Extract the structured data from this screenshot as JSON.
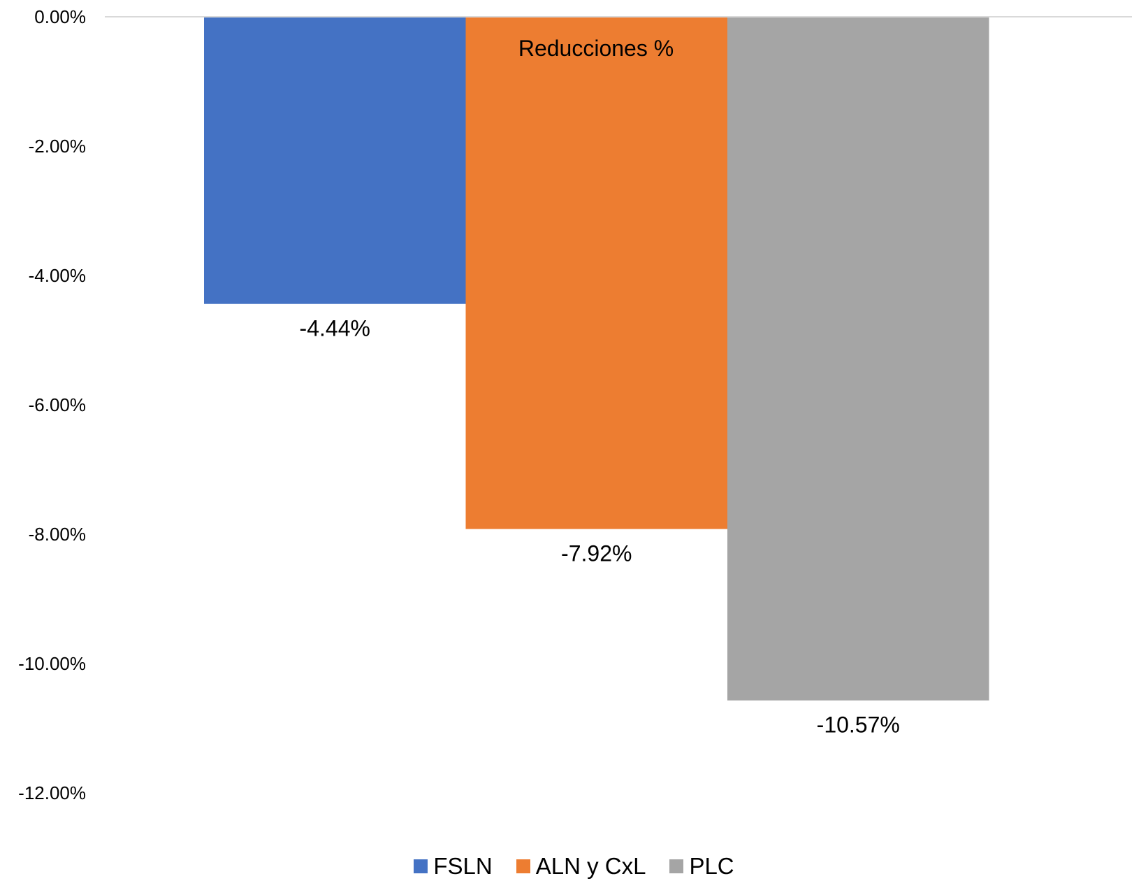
{
  "chart_data": {
    "type": "bar",
    "title": "Reducciones %",
    "xlabel": "",
    "ylabel": "",
    "categories": [
      "FSLN",
      "ALN y CxL",
      "PLC"
    ],
    "values": [
      -4.44,
      -7.92,
      -10.57
    ],
    "data_labels": [
      "-4.44%",
      "-7.92%",
      "-10.57%"
    ],
    "colors": [
      "#4472C4",
      "#ED7D31",
      "#A5A5A5"
    ],
    "ylim": [
      -12,
      0
    ],
    "yticks": [
      0,
      -2,
      -4,
      -6,
      -8,
      -10,
      -12
    ],
    "ytick_labels": [
      "0.00%",
      "-2.00%",
      "-4.00%",
      "-6.00%",
      "-8.00%",
      "-10.00%",
      "-12.00%"
    ],
    "grid": false,
    "legend_position": "bottom",
    "axis_line_color": "#D9D9D9"
  }
}
